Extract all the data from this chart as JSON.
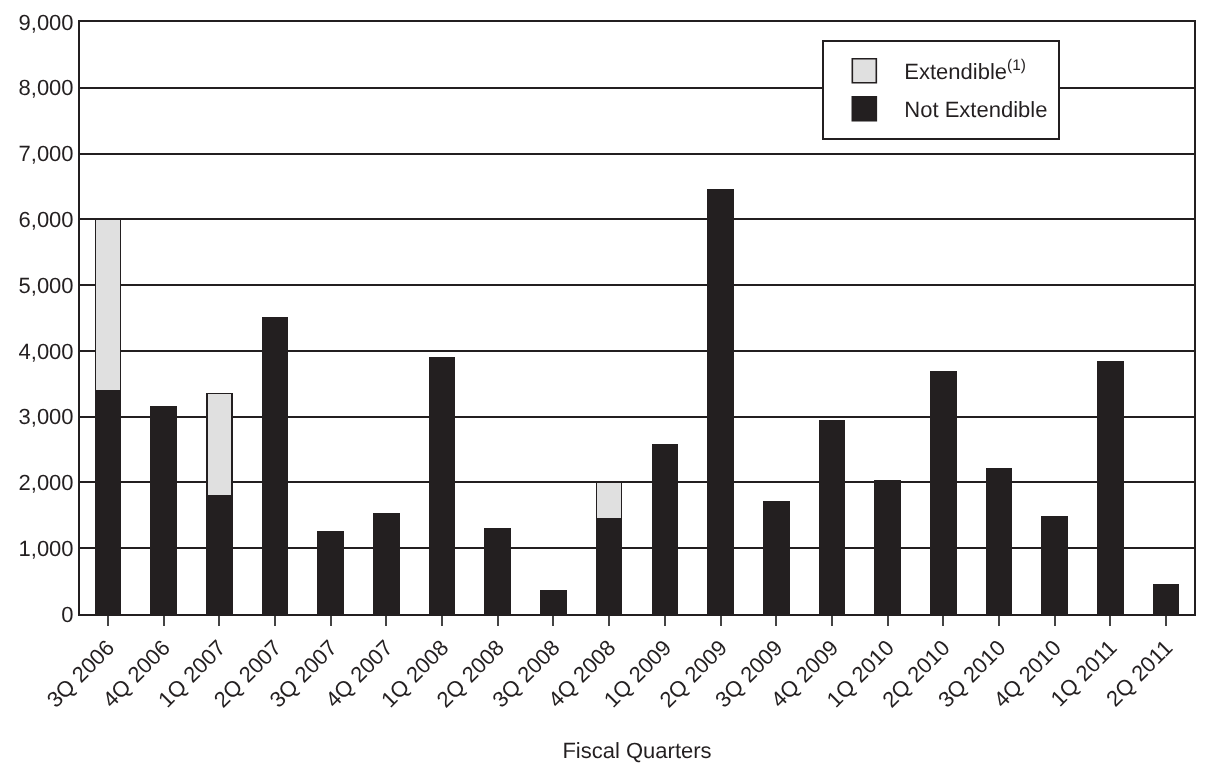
{
  "chart_data": {
    "type": "bar",
    "stacked": true,
    "xlabel": "Fiscal Quarters",
    "categories": [
      "3Q 2006",
      "4Q 2006",
      "1Q 2007",
      "2Q 2007",
      "3Q 2007",
      "4Q 2007",
      "1Q 2008",
      "2Q 2008",
      "3Q 2008",
      "4Q 2008",
      "1Q 2009",
      "2Q 2009",
      "3Q 2009",
      "4Q 2009",
      "1Q 2010",
      "2Q 2010",
      "3Q 2010",
      "4Q 2010",
      "1Q 2011",
      "2Q 2011"
    ],
    "series": [
      {
        "name": "Not Extendible",
        "color": "#231f20",
        "values": [
          3400,
          3150,
          1800,
          4500,
          1250,
          1520,
          3900,
          1300,
          350,
          1450,
          2580,
          6450,
          1700,
          2930,
          2030,
          3680,
          2200,
          1480,
          3830,
          450
        ]
      },
      {
        "name": "Extendible$^{(1)}$",
        "color": "#e0e0e0",
        "values": [
          2600,
          null,
          1550,
          null,
          null,
          null,
          null,
          null,
          null,
          550,
          null,
          null,
          null,
          null,
          null,
          null,
          null,
          null,
          null,
          null
        ]
      }
    ],
    "ylim": [
      0,
      9000
    ],
    "yticks": [
      {
        "value": 0,
        "label": "0"
      },
      {
        "value": 1000,
        "label": "1,000"
      },
      {
        "value": 2000,
        "label": "2,000"
      },
      {
        "value": 3000,
        "label": "3,000"
      },
      {
        "value": 4000,
        "label": "4,000"
      },
      {
        "value": 5000,
        "label": "5,000"
      },
      {
        "value": 6000,
        "label": "6,000"
      },
      {
        "value": 7000,
        "label": "7,000"
      },
      {
        "value": 8000,
        "label": "8,000"
      },
      {
        "value": 9000,
        "label": "9,000"
      }
    ],
    "grid": "y",
    "legend": "top right"
  }
}
